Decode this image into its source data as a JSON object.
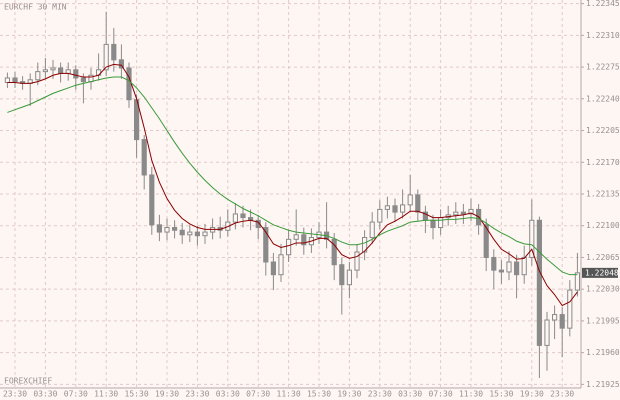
{
  "chart_data": {
    "type": "candlestick",
    "title": "EURCHF 30 MIN",
    "watermark": "FOREXCHIEF",
    "categories": [
      null,
      "23:30",
      null,
      null,
      null,
      "03:30",
      null,
      null,
      null,
      "07:30",
      null,
      null,
      null,
      "11:30",
      null,
      null,
      null,
      "15:30",
      null,
      null,
      null,
      "19:30",
      null,
      null,
      null,
      "23:30",
      null,
      null,
      null,
      "03:30",
      null,
      null,
      null,
      "07:30",
      null,
      null,
      null,
      "11:30",
      null,
      null,
      null,
      "15:30",
      null,
      null,
      null,
      "19:30",
      null,
      null,
      null,
      "23:30",
      null,
      null,
      null,
      "03:30",
      null,
      null,
      null,
      "07:30",
      null,
      null,
      null,
      "11:30",
      null,
      null,
      null,
      "15:30",
      null,
      null,
      null,
      "19:30",
      null,
      null,
      null,
      "23:30",
      null,
      null
    ],
    "open": [
      1.22258,
      1.22263,
      1.22259,
      1.22257,
      1.22261,
      1.2227,
      1.22272,
      1.22274,
      1.22268,
      1.22272,
      1.22263,
      1.22259,
      1.22266,
      1.22272,
      1.223,
      1.22283,
      1.22274,
      1.22239,
      1.22195,
      1.22156,
      1.22101,
      1.22093,
      1.22098,
      1.22095,
      1.2209,
      1.22093,
      1.22089,
      1.22093,
      1.22098,
      1.22095,
      1.22104,
      1.22113,
      1.22109,
      1.22106,
      1.22098,
      1.2206,
      1.22046,
      1.22068,
      1.22085,
      1.2209,
      1.22079,
      1.22087,
      1.22093,
      1.22085,
      1.22057,
      1.22035,
      1.22051,
      1.22071,
      1.22087,
      1.22104,
      1.22118,
      1.22122,
      1.22115,
      1.22123,
      1.22134,
      1.22115,
      1.22106,
      1.22098,
      1.22109,
      1.22112,
      1.22115,
      1.22113,
      1.22118,
      1.22101,
      1.22065,
      1.22051,
      1.22049,
      1.2206,
      1.22046,
      1.22065,
      1.22106,
      1.21968,
      1.21996,
      1.22002,
      1.21987,
      1.22029
    ],
    "high": [
      1.22269,
      1.2227,
      1.22265,
      1.22268,
      1.2228,
      1.22285,
      1.22283,
      1.2228,
      1.2228,
      1.22277,
      1.22268,
      1.22274,
      1.2229,
      1.22336,
      1.22318,
      1.223,
      1.2228,
      1.22245,
      1.222,
      1.22165,
      1.22112,
      1.22108,
      1.22106,
      1.22103,
      1.22101,
      1.221,
      1.22102,
      1.22108,
      1.2211,
      1.22118,
      1.22125,
      1.22122,
      1.22118,
      1.22112,
      1.22104,
      1.2207,
      1.2208,
      1.22095,
      1.22118,
      1.22098,
      1.22097,
      1.22104,
      1.22126,
      1.22092,
      1.22065,
      1.2206,
      1.2208,
      1.22095,
      1.22115,
      1.22128,
      1.22132,
      1.2213,
      1.2214,
      1.22156,
      1.2214,
      1.22122,
      1.22112,
      1.22118,
      1.22122,
      1.22126,
      1.22124,
      1.2213,
      1.22124,
      1.22108,
      1.22074,
      1.22062,
      1.22072,
      1.22068,
      1.22078,
      1.22129,
      1.2211,
      1.22005,
      1.22012,
      1.2201,
      1.2204,
      1.2207
    ],
    "low": [
      1.22252,
      1.22252,
      1.2225,
      1.22232,
      1.22255,
      1.22262,
      1.22262,
      1.22258,
      1.2226,
      1.2225,
      1.22235,
      1.2225,
      1.2226,
      1.22265,
      1.2227,
      1.22262,
      1.2223,
      1.22175,
      1.2214,
      1.2209,
      1.22083,
      1.22084,
      1.22086,
      1.2208,
      1.22082,
      1.22078,
      1.2208,
      1.22085,
      1.22086,
      1.22088,
      1.22096,
      1.22098,
      1.22095,
      1.22085,
      1.22045,
      1.22029,
      1.22038,
      1.2206,
      1.22078,
      1.22068,
      1.2207,
      1.2208,
      1.22075,
      1.2204,
      1.22002,
      1.2202,
      1.22042,
      1.22062,
      1.2208,
      1.22096,
      1.22108,
      1.22104,
      1.22108,
      1.22115,
      1.22105,
      1.22092,
      1.22085,
      1.2209,
      1.221,
      1.22102,
      1.22102,
      1.22105,
      1.2209,
      1.2205,
      1.2203,
      1.22036,
      1.2204,
      1.2202,
      1.22036,
      1.22056,
      1.21932,
      1.2194,
      1.21975,
      1.21955,
      1.21978,
      1.22022
    ],
    "close": [
      1.22263,
      1.22259,
      1.22257,
      1.22261,
      1.2227,
      1.22272,
      1.22274,
      1.22268,
      1.22272,
      1.22263,
      1.22259,
      1.22266,
      1.22272,
      1.223,
      1.22283,
      1.22274,
      1.22239,
      1.22195,
      1.22156,
      1.22101,
      1.22093,
      1.22098,
      1.22095,
      1.2209,
      1.22093,
      1.22089,
      1.22093,
      1.22098,
      1.22095,
      1.22104,
      1.22113,
      1.22109,
      1.22106,
      1.22098,
      1.2206,
      1.22046,
      1.22068,
      1.22085,
      1.2209,
      1.22079,
      1.22087,
      1.22093,
      1.22085,
      1.22057,
      1.22035,
      1.22051,
      1.22071,
      1.22087,
      1.22104,
      1.22118,
      1.22122,
      1.22115,
      1.22123,
      1.22134,
      1.22115,
      1.22106,
      1.22098,
      1.22109,
      1.22112,
      1.22115,
      1.22113,
      1.22118,
      1.22101,
      1.22065,
      1.22051,
      1.22049,
      1.2206,
      1.22046,
      1.22065,
      1.22106,
      1.21968,
      1.21996,
      1.22002,
      1.21987,
      1.22029,
      1.22048
    ],
    "candle_color": "#8a8a8a",
    "lines": [
      {
        "color": "#8b0000",
        "values": [
          1.22258,
          1.22258,
          1.22257,
          1.22257,
          1.22259,
          1.22262,
          1.22266,
          1.22268,
          1.22268,
          1.22266,
          1.22264,
          1.22264,
          1.22266,
          1.22275,
          1.22278,
          1.22277,
          1.22264,
          1.2224,
          1.22208,
          1.22172,
          1.22148,
          1.2213,
          1.22117,
          1.22108,
          1.22102,
          1.22098,
          1.22096,
          1.22096,
          1.22096,
          1.22099,
          1.22103,
          1.22105,
          1.22106,
          1.22104,
          1.22093,
          1.2208,
          1.22076,
          1.22078,
          1.22081,
          1.22081,
          1.22083,
          1.22086,
          1.22086,
          1.22079,
          1.22068,
          1.22064,
          1.22066,
          1.22072,
          1.22081,
          1.22092,
          1.22101,
          1.22105,
          1.2211,
          1.22116,
          1.22116,
          1.22113,
          1.22109,
          1.22109,
          1.2211,
          1.22111,
          1.22112,
          1.22114,
          1.2211,
          1.22098,
          1.22085,
          1.22074,
          1.22069,
          1.22063,
          1.22064,
          1.22074,
          1.2205,
          1.22034,
          1.22024,
          1.22012,
          1.22016,
          1.22027
        ]
      },
      {
        "color": "#3a9a3a",
        "values": [
          1.22225,
          1.22228,
          1.22231,
          1.22234,
          1.22238,
          1.22242,
          1.22246,
          1.22249,
          1.22252,
          1.22255,
          1.22257,
          1.22259,
          1.22261,
          1.22263,
          1.22264,
          1.22264,
          1.2226,
          1.22252,
          1.22242,
          1.2223,
          1.22218,
          1.22205,
          1.22192,
          1.2218,
          1.22169,
          1.22159,
          1.2215,
          1.22142,
          1.22135,
          1.22129,
          1.22124,
          1.22119,
          1.22115,
          1.22111,
          1.22106,
          1.22101,
          1.22098,
          1.22095,
          1.22093,
          1.22092,
          1.22091,
          1.2209,
          1.22089,
          1.22086,
          1.22082,
          1.22079,
          1.22079,
          1.22081,
          1.22085,
          1.2209,
          1.22094,
          1.22097,
          1.221,
          1.22104,
          1.22105,
          1.22106,
          1.22106,
          1.22106,
          1.22107,
          1.22107,
          1.22108,
          1.22109,
          1.22108,
          1.22103,
          1.22097,
          1.22092,
          1.22088,
          1.22083,
          1.2208,
          1.22079,
          1.22071,
          1.22063,
          1.22056,
          1.22049,
          1.22046,
          1.22046
        ]
      }
    ],
    "last_price": 1.22048,
    "ylim": [
      1.21921,
      1.22349
    ],
    "yticks": [
      {
        "value": 1.22345,
        "label": "1.22345"
      },
      {
        "value": 1.2231,
        "label": "1.22310"
      },
      {
        "value": 1.22275,
        "label": "1.22275"
      },
      {
        "value": 1.2224,
        "label": "1.22240"
      },
      {
        "value": 1.22205,
        "label": "1.22205"
      },
      {
        "value": 1.2217,
        "label": "1.22170"
      },
      {
        "value": 1.22135,
        "label": "1.22135"
      },
      {
        "value": 1.221,
        "label": "1.22100"
      },
      {
        "value": 1.22065,
        "label": "1.22065"
      },
      {
        "value": 1.2203,
        "label": "1.22030"
      },
      {
        "value": 1.21995,
        "label": "1.21995"
      },
      {
        "value": 1.2196,
        "label": "1.21960"
      },
      {
        "value": 1.21925,
        "label": "1.21925"
      }
    ],
    "grid": true
  }
}
